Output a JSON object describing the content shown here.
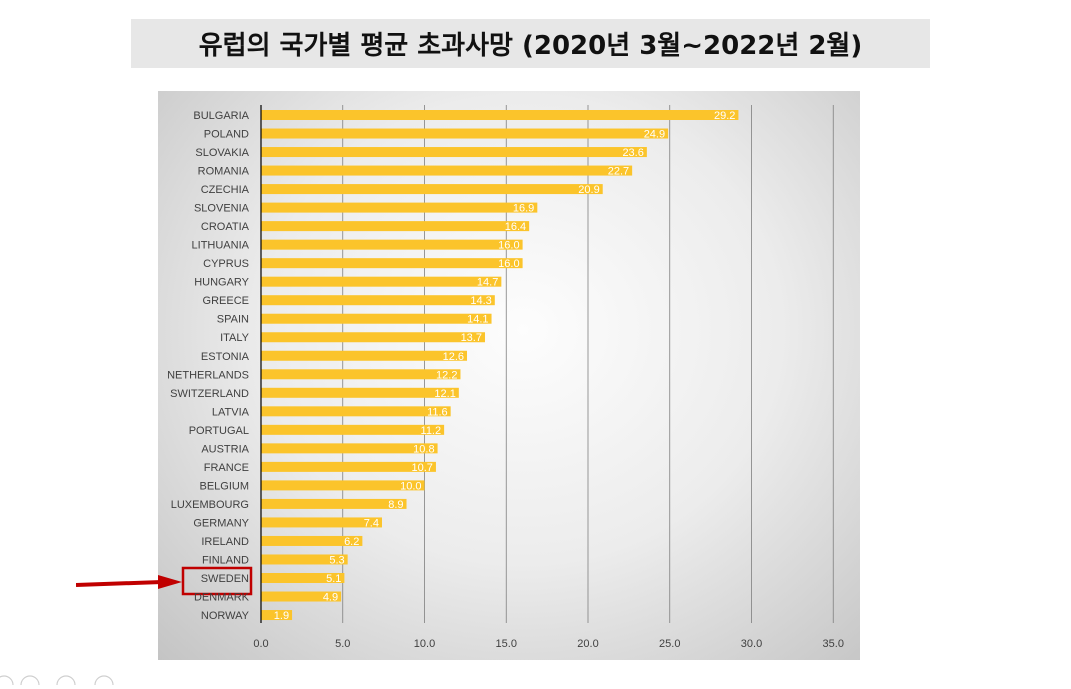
{
  "title": "유럽의 국가별 평균 초과사망 (2020년 3월~2022년 2월)",
  "colors": {
    "bar": "#FBC42B",
    "highlight_box": "#C00000",
    "arrow": "#C00000",
    "label_text": "#404040",
    "value_text": "#ffffff",
    "gridline": "#7f7f7f",
    "axis": "#000000"
  },
  "chart_data": {
    "type": "bar",
    "orientation": "horizontal",
    "categories": [
      "BULGARIA",
      "POLAND",
      "SLOVAKIA",
      "ROMANIA",
      "CZECHIA",
      "SLOVENIA",
      "CROATIA",
      "LITHUANIA",
      "CYPRUS",
      "HUNGARY",
      "GREECE",
      "SPAIN",
      "ITALY",
      "ESTONIA",
      "NETHERLANDS",
      "SWITZERLAND",
      "LATVIA",
      "PORTUGAL",
      "AUSTRIA",
      "FRANCE",
      "BELGIUM",
      "LUXEMBOURG",
      "GERMANY",
      "IRELAND",
      "FINLAND",
      "SWEDEN",
      "DENMARK",
      "NORWAY"
    ],
    "values": [
      29.2,
      24.9,
      23.6,
      22.7,
      20.9,
      16.9,
      16.4,
      16.0,
      16.0,
      14.7,
      14.3,
      14.1,
      13.7,
      12.6,
      12.2,
      12.1,
      11.6,
      11.2,
      10.8,
      10.7,
      10.0,
      8.9,
      7.4,
      6.2,
      5.3,
      5.1,
      4.9,
      1.9
    ],
    "value_labels": [
      "29.2",
      "24.9",
      "23.6",
      "22.7",
      "20.9",
      "16.9",
      "16.4",
      "16.0",
      "16.0",
      "14.7",
      "14.3",
      "14.1",
      "13.7",
      "12.6",
      "12.2",
      "12.1",
      "11.6",
      "11.2",
      "10.8",
      "10.7",
      "10.0",
      "8.9",
      "7.4",
      "6.2",
      "5.3",
      "5.1",
      "4.9",
      "1.9"
    ],
    "xlim": [
      0,
      35
    ],
    "xticks": [
      0,
      5,
      10,
      15,
      20,
      25,
      30,
      35
    ],
    "xtick_labels": [
      "0.0",
      "5.0",
      "10.0",
      "15.0",
      "20.0",
      "25.0",
      "30.0",
      "35.0"
    ],
    "grid": true,
    "xlabel": "",
    "ylabel": "",
    "highlight": "SWEDEN"
  }
}
